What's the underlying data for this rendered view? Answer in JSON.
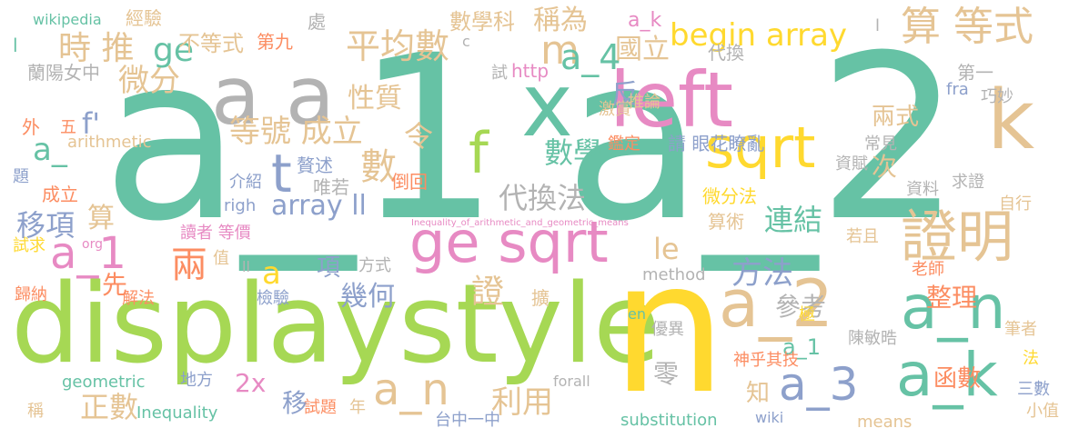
{
  "palette": {
    "green": "#66c2a5",
    "lime": "#a6d854",
    "yellow": "#ffd92f",
    "orange": "#fc8d62",
    "pink": "#e78ac3",
    "gray": "#b3b3b3",
    "tan": "#e5c494",
    "blue": "#8da0cb"
  },
  "words": [
    {
      "text": "a_1",
      "color": "green"
    },
    {
      "text": "a_2",
      "color": "green"
    },
    {
      "text": "displaystyle",
      "color": "lime"
    },
    {
      "text": "n",
      "color": "yellow"
    },
    {
      "text": "a a",
      "color": "gray"
    },
    {
      "text": "x",
      "color": "green"
    },
    {
      "text": "left",
      "color": "pink"
    },
    {
      "text": "k",
      "color": "tan"
    },
    {
      "text": "ge sqrt",
      "color": "pink"
    },
    {
      "text": "sqrt",
      "color": "yellow"
    },
    {
      "text": "證明",
      "color": "tan"
    },
    {
      "text": "a_2",
      "color": "tan"
    },
    {
      "text": "a_n",
      "color": "green"
    },
    {
      "text": "a_k",
      "color": "green"
    },
    {
      "text": "a_1",
      "color": "pink"
    },
    {
      "text": "a_n",
      "color": "tan"
    },
    {
      "text": "a_3",
      "color": "blue"
    },
    {
      "text": "算 等式",
      "color": "tan"
    },
    {
      "text": "f",
      "color": "lime"
    },
    {
      "text": "begin array",
      "color": "yellow"
    },
    {
      "text": "t",
      "color": "blue"
    },
    {
      "text": "數",
      "color": "tan"
    },
    {
      "text": "m",
      "color": "tan"
    },
    {
      "text": "a_4",
      "color": "green"
    },
    {
      "text": "平均數",
      "color": "tan"
    },
    {
      "text": "等號 成立",
      "color": "tan"
    },
    {
      "text": "微分",
      "color": "tan"
    },
    {
      "text": "ge",
      "color": "green"
    },
    {
      "text": "時 推",
      "color": "tan"
    },
    {
      "text": "a_",
      "color": "green"
    },
    {
      "text": "array ll",
      "color": "blue"
    },
    {
      "text": "兩",
      "color": "orange"
    },
    {
      "text": "代換法",
      "color": "gray"
    },
    {
      "text": "數學",
      "color": "green"
    },
    {
      "text": "方法",
      "color": "blue"
    },
    {
      "text": "連結",
      "color": "green"
    },
    {
      "text": "整理",
      "color": "orange"
    },
    {
      "text": "參考",
      "color": "gray"
    },
    {
      "text": "證",
      "color": "tan"
    },
    {
      "text": "利用",
      "color": "tan"
    },
    {
      "text": "函數",
      "color": "orange"
    },
    {
      "text": "正數",
      "color": "tan"
    },
    {
      "text": "移項",
      "color": "blue"
    },
    {
      "text": "幾何",
      "color": "blue"
    },
    {
      "text": "性質",
      "color": "tan"
    },
    {
      "text": "令",
      "color": "tan"
    },
    {
      "text": "稱為",
      "color": "tan"
    },
    {
      "text": "國立",
      "color": "tan"
    },
    {
      "text": "反",
      "color": "blue"
    },
    {
      "text": "兩式",
      "color": "tan"
    },
    {
      "text": "次",
      "color": "tan"
    },
    {
      "text": "零",
      "color": "gray"
    },
    {
      "text": "先",
      "color": "orange"
    },
    {
      "text": "知",
      "color": "tan"
    },
    {
      "text": "移",
      "color": "blue"
    },
    {
      "text": "2x",
      "color": "pink"
    },
    {
      "text": "le",
      "color": "tan"
    },
    {
      "text": "a",
      "color": "yellow"
    },
    {
      "text": "項",
      "color": "blue"
    },
    {
      "text": "f'",
      "color": "blue"
    },
    {
      "text": "算",
      "color": "tan"
    },
    {
      "text": "a_1",
      "color": "green"
    },
    {
      "text": "不等式",
      "color": "tan"
    },
    {
      "text": "數學科",
      "color": "tan"
    },
    {
      "text": "a_k",
      "color": "pink"
    },
    {
      "text": "經驗",
      "color": "tan"
    },
    {
      "text": "處",
      "color": "gray"
    },
    {
      "text": "第九",
      "color": "orange"
    },
    {
      "text": "代換",
      "color": "gray"
    },
    {
      "text": "蘭陽女中",
      "color": "gray"
    },
    {
      "text": "http",
      "color": "pink"
    },
    {
      "text": "試",
      "color": "gray"
    },
    {
      "text": "第一",
      "color": "gray"
    },
    {
      "text": "巧妙",
      "color": "gray"
    },
    {
      "text": "fra",
      "color": "blue"
    },
    {
      "text": "推論",
      "color": "tan"
    },
    {
      "text": "激賞",
      "color": "tan"
    },
    {
      "text": "arithmetic",
      "color": "tan"
    },
    {
      "text": "五",
      "color": "orange"
    },
    {
      "text": "外",
      "color": "orange"
    },
    {
      "text": "請 眼花瞭亂",
      "color": "blue"
    },
    {
      "text": "鑑定",
      "color": "orange"
    },
    {
      "text": "常見",
      "color": "gray"
    },
    {
      "text": "贅述",
      "color": "blue"
    },
    {
      "text": "唯若",
      "color": "gray"
    },
    {
      "text": "介紹",
      "color": "blue"
    },
    {
      "text": "資賦",
      "color": "gray"
    },
    {
      "text": "題",
      "color": "blue"
    },
    {
      "text": "成立",
      "color": "orange"
    },
    {
      "text": "倒回",
      "color": "orange"
    },
    {
      "text": "微分法",
      "color": "yellow"
    },
    {
      "text": "求證",
      "color": "gray"
    },
    {
      "text": "資料",
      "color": "gray"
    },
    {
      "text": "righ",
      "color": "blue"
    },
    {
      "text": "算術",
      "color": "tan"
    },
    {
      "text": "自行",
      "color": "tan"
    },
    {
      "text": "Inequality_of_arithmetic_and_geometric_means",
      "color": "pink"
    },
    {
      "text": "讀者 等價",
      "color": "pink"
    },
    {
      "text": "試求",
      "color": "yellow"
    },
    {
      "text": "org",
      "color": "pink"
    },
    {
      "text": "若且",
      "color": "tan"
    },
    {
      "text": "值",
      "color": "tan"
    },
    {
      "text": "ll",
      "color": "gray"
    },
    {
      "text": "方式",
      "color": "gray"
    },
    {
      "text": "method",
      "color": "gray"
    },
    {
      "text": "老師",
      "color": "orange"
    },
    {
      "text": "歸納",
      "color": "orange"
    },
    {
      "text": "解法",
      "color": "orange"
    },
    {
      "text": "檢驗",
      "color": "blue"
    },
    {
      "text": "擴",
      "color": "tan"
    },
    {
      "text": "極",
      "color": "yellow"
    },
    {
      "text": "en",
      "color": "green"
    },
    {
      "text": "優異",
      "color": "gray"
    },
    {
      "text": "筆者",
      "color": "tan"
    },
    {
      "text": "陳敏晧",
      "color": "gray"
    },
    {
      "text": "神乎其技",
      "color": "orange"
    },
    {
      "text": "法",
      "color": "yellow"
    },
    {
      "text": "geometric",
      "color": "green"
    },
    {
      "text": "地方",
      "color": "blue"
    },
    {
      "text": "forall",
      "color": "gray"
    },
    {
      "text": "三數",
      "color": "blue"
    },
    {
      "text": "小值",
      "color": "tan"
    },
    {
      "text": "稱",
      "color": "tan"
    },
    {
      "text": "Inequality",
      "color": "green"
    },
    {
      "text": "試題",
      "color": "orange"
    },
    {
      "text": "年",
      "color": "tan"
    },
    {
      "text": "台中一中",
      "color": "blue"
    },
    {
      "text": "substitution",
      "color": "green"
    },
    {
      "text": "wiki",
      "color": "blue"
    },
    {
      "text": "means",
      "color": "tan"
    },
    {
      "text": "wikipedia",
      "color": "green"
    },
    {
      "text": "c",
      "color": "gray"
    },
    {
      "text": "l",
      "color": "green"
    },
    {
      "text": "l",
      "color": "gray"
    }
  ]
}
